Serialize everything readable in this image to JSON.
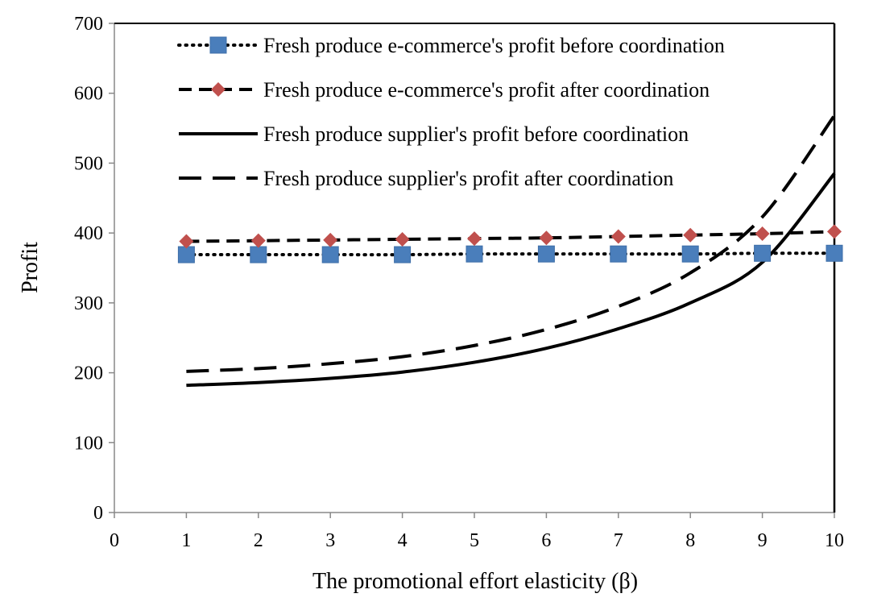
{
  "chart_data": {
    "type": "line",
    "xlabel": "The promotional effort elasticity (β)",
    "ylabel": "Profit",
    "xlim": [
      0,
      10
    ],
    "ylim": [
      0,
      700
    ],
    "xticks": [
      0,
      1,
      2,
      3,
      4,
      5,
      6,
      7,
      8,
      9,
      10
    ],
    "yticks": [
      0,
      100,
      200,
      300,
      400,
      500,
      600,
      700
    ],
    "grid": false,
    "legend_position": "top-right",
    "x": [
      1,
      2,
      3,
      4,
      5,
      6,
      7,
      8,
      9,
      10
    ],
    "series": [
      {
        "name": "Fresh produce e-commerce's profit before coordination",
        "values": [
          369,
          369,
          369,
          369,
          370,
          370,
          370,
          370,
          371,
          371
        ],
        "line_style": "dotted",
        "marker": "square",
        "marker_color": "#4a7ebb"
      },
      {
        "name": "Fresh produce e-commerce's profit after coordination",
        "values": [
          388,
          389,
          390,
          391,
          392,
          393,
          395,
          397,
          399,
          402
        ],
        "line_style": "dashed",
        "marker": "diamond",
        "marker_color": "#c0504d"
      },
      {
        "name": "Fresh produce supplier's profit before coordination",
        "values": [
          182,
          186,
          192,
          201,
          215,
          235,
          263,
          300,
          358,
          485
        ],
        "line_style": "solid",
        "marker": "none"
      },
      {
        "name": "Fresh produce supplier's profit after coordination",
        "values": [
          202,
          206,
          213,
          223,
          239,
          262,
          295,
          343,
          423,
          568
        ],
        "line_style": "long-dash",
        "marker": "none"
      }
    ]
  }
}
